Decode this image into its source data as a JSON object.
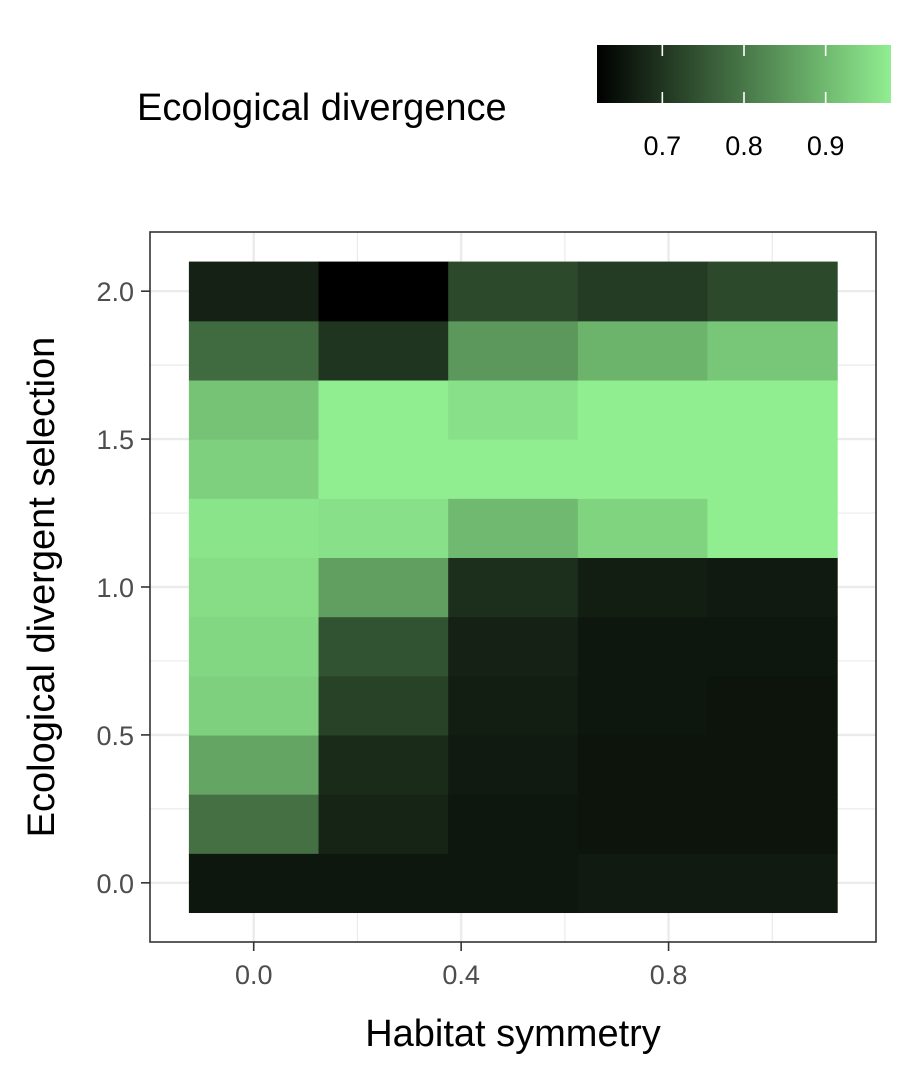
{
  "chart_data": {
    "type": "heatmap",
    "title": "",
    "xlabel": "Habitat symmetry",
    "ylabel": "Ecological divergent selection",
    "legend_title": "Ecological divergence",
    "legend_position": "top",
    "grid": true,
    "x_values": [
      0.0,
      0.25,
      0.5,
      0.75,
      1.0
    ],
    "y_values": [
      0.0,
      0.2,
      0.4,
      0.6,
      0.8,
      1.0,
      1.2,
      1.4,
      1.6,
      1.8,
      2.0
    ],
    "xlim": [
      -0.2,
      1.2
    ],
    "ylim": [
      -0.2,
      2.2
    ],
    "x_ticks": [
      0.0,
      0.4,
      0.8
    ],
    "x_tick_labels": [
      "0.0",
      "0.4",
      "0.8"
    ],
    "y_ticks": [
      0.0,
      0.5,
      1.0,
      1.5,
      2.0
    ],
    "y_tick_labels": [
      "0.0",
      "0.5",
      "1.0",
      "1.5",
      "2.0"
    ],
    "color_range": [
      0.62,
      0.98
    ],
    "color_low": "#000000",
    "color_high": "#90ee90",
    "legend_ticks": [
      0.7,
      0.8,
      0.9
    ],
    "legend_tick_labels": [
      "0.7",
      "0.8",
      "0.9"
    ],
    "values": [
      [
        0.655,
        0.655,
        0.655,
        0.66,
        0.66
      ],
      [
        0.79,
        0.675,
        0.655,
        0.65,
        0.65
      ],
      [
        0.87,
        0.685,
        0.66,
        0.65,
        0.65
      ],
      [
        0.935,
        0.72,
        0.665,
        0.655,
        0.65
      ],
      [
        0.945,
        0.745,
        0.67,
        0.655,
        0.655
      ],
      [
        0.955,
        0.86,
        0.69,
        0.665,
        0.66
      ],
      [
        0.965,
        0.96,
        0.9,
        0.94,
        0.98
      ],
      [
        0.935,
        0.98,
        0.98,
        0.98,
        0.98
      ],
      [
        0.915,
        0.98,
        0.96,
        0.98,
        0.98
      ],
      [
        0.78,
        0.7,
        0.85,
        0.89,
        0.92
      ],
      [
        0.67,
        0.62,
        0.73,
        0.71,
        0.73
      ]
    ]
  }
}
